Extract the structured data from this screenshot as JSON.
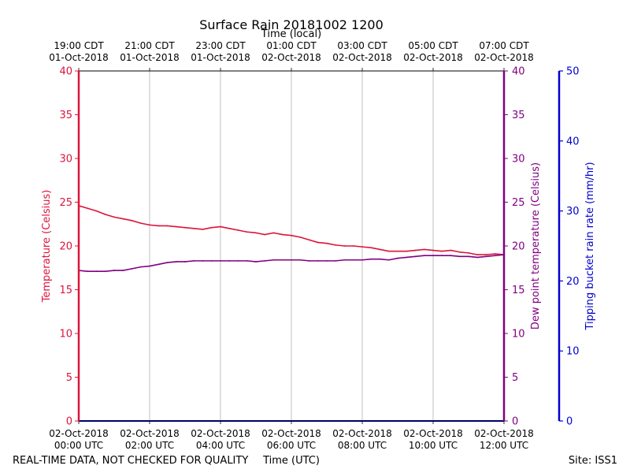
{
  "chart_data": {
    "type": "line",
    "title": "Surface Rain 20181002 1200",
    "top_axis_label": "Time (local)",
    "xlabel": "Time (UTC)",
    "ylabel_left": "Temperature (Celsius)",
    "ylabel_right": "Dew point temperature (Celsius)",
    "ylabel_far_right": "Tipping bucket rain rate (mm/hr)",
    "ylim_left": [
      0,
      40
    ],
    "ylim_right": [
      0,
      40
    ],
    "ylim_far_right": [
      0,
      50
    ],
    "xlim_hours_utc": [
      0,
      12
    ],
    "grid_x": true,
    "yticks_left": [
      "0",
      "5",
      "10",
      "15",
      "20",
      "25",
      "30",
      "35",
      "40"
    ],
    "yticks_right": [
      "0",
      "5",
      "10",
      "15",
      "20",
      "25",
      "30",
      "35",
      "40"
    ],
    "yticks_far_right": [
      "0",
      "10",
      "20",
      "30",
      "40",
      "50"
    ],
    "x_ticks_utc": [
      {
        "line1": "02-Oct-2018",
        "line2": "00:00 UTC"
      },
      {
        "line1": "02-Oct-2018",
        "line2": "02:00 UTC"
      },
      {
        "line1": "02-Oct-2018",
        "line2": "04:00 UTC"
      },
      {
        "line1": "02-Oct-2018",
        "line2": "06:00 UTC"
      },
      {
        "line1": "02-Oct-2018",
        "line2": "08:00 UTC"
      },
      {
        "line1": "02-Oct-2018",
        "line2": "10:00 UTC"
      },
      {
        "line1": "02-Oct-2018",
        "line2": "12:00 UTC"
      }
    ],
    "x_ticks_local": [
      {
        "line1": "19:00 CDT",
        "line2": "01-Oct-2018"
      },
      {
        "line1": "21:00 CDT",
        "line2": "01-Oct-2018"
      },
      {
        "line1": "23:00 CDT",
        "line2": "01-Oct-2018"
      },
      {
        "line1": "01:00 CDT",
        "line2": "02-Oct-2018"
      },
      {
        "line1": "03:00 CDT",
        "line2": "02-Oct-2018"
      },
      {
        "line1": "05:00 CDT",
        "line2": "02-Oct-2018"
      },
      {
        "line1": "07:00 CDT",
        "line2": "02-Oct-2018"
      }
    ],
    "series": [
      {
        "color": "#dc143c",
        "axis": "left",
        "x": [
          0,
          0.25,
          0.5,
          0.75,
          1.0,
          1.25,
          1.5,
          1.75,
          2.0,
          2.25,
          2.5,
          2.75,
          3.0,
          3.25,
          3.5,
          3.75,
          4.0,
          4.25,
          4.5,
          4.75,
          5.0,
          5.25,
          5.5,
          5.75,
          6.0,
          6.25,
          6.5,
          6.75,
          7.0,
          7.25,
          7.5,
          7.75,
          8.0,
          8.25,
          8.5,
          8.75,
          9.0,
          9.25,
          9.5,
          9.75,
          10.0,
          10.25,
          10.5,
          10.75,
          11.0,
          11.25,
          11.5,
          11.75,
          12.0
        ],
        "values": [
          24.6,
          24.3,
          24.0,
          23.6,
          23.3,
          23.1,
          22.9,
          22.6,
          22.4,
          22.3,
          22.3,
          22.2,
          22.1,
          22.0,
          21.9,
          22.1,
          22.2,
          22.0,
          21.8,
          21.6,
          21.5,
          21.3,
          21.5,
          21.3,
          21.2,
          21.0,
          20.7,
          20.4,
          20.3,
          20.1,
          20.0,
          20.0,
          19.9,
          19.8,
          19.6,
          19.4,
          19.4,
          19.4,
          19.5,
          19.6,
          19.5,
          19.4,
          19.5,
          19.3,
          19.2,
          19.0,
          19.0,
          19.1,
          19.0
        ]
      },
      {
        "color": "#800080",
        "axis": "right",
        "x": [
          0,
          0.25,
          0.5,
          0.75,
          1.0,
          1.25,
          1.5,
          1.75,
          2.0,
          2.25,
          2.5,
          2.75,
          3.0,
          3.25,
          3.5,
          3.75,
          4.0,
          4.25,
          4.5,
          4.75,
          5.0,
          5.25,
          5.5,
          5.75,
          6.0,
          6.25,
          6.5,
          6.75,
          7.0,
          7.25,
          7.5,
          7.75,
          8.0,
          8.25,
          8.5,
          8.75,
          9.0,
          9.25,
          9.5,
          9.75,
          10.0,
          10.25,
          10.5,
          10.75,
          11.0,
          11.25,
          11.5,
          11.75,
          12.0
        ],
        "values": [
          17.2,
          17.1,
          17.1,
          17.1,
          17.2,
          17.2,
          17.4,
          17.6,
          17.7,
          17.9,
          18.1,
          18.2,
          18.2,
          18.3,
          18.3,
          18.3,
          18.3,
          18.3,
          18.3,
          18.3,
          18.2,
          18.3,
          18.4,
          18.4,
          18.4,
          18.4,
          18.3,
          18.3,
          18.3,
          18.3,
          18.4,
          18.4,
          18.4,
          18.5,
          18.5,
          18.4,
          18.6,
          18.7,
          18.8,
          18.9,
          18.9,
          18.9,
          18.9,
          18.8,
          18.8,
          18.7,
          18.8,
          18.9,
          19.0
        ]
      },
      {
        "color": "#0000cd",
        "axis": "far_right",
        "x": [
          0,
          12
        ],
        "values": [
          0,
          0
        ]
      }
    ]
  },
  "footer": {
    "disclaimer": "REAL-TIME DATA, NOT CHECKED FOR QUALITY",
    "site": "Site: ISS1"
  }
}
